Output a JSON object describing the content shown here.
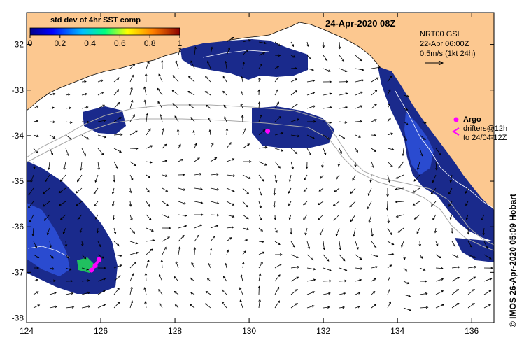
{
  "map": {
    "date_title": "24-Apr-2020 08Z",
    "credit": "© IMOS 26-Apr-2020 05:09 Hobart",
    "x_ticks": [
      "124",
      "126",
      "128",
      "130",
      "132",
      "134",
      "136"
    ],
    "y_ticks": [
      "-32",
      "-33",
      "-34",
      "-35",
      "-36",
      "-37",
      "-38"
    ],
    "x_range": [
      124,
      136.6
    ],
    "y_range": [
      -38.1,
      -31.3
    ]
  },
  "colorbar": {
    "title": "std dev of 4hr SST comp",
    "ticks": [
      "0",
      "0.2",
      "0.4",
      "0.6",
      "0.8",
      "1"
    ],
    "range": [
      0,
      1
    ],
    "colors": [
      "#00008b",
      "#0000ff",
      "#00bfff",
      "#00ff7f",
      "#ffff00",
      "#ff7f00",
      "#8b0000"
    ]
  },
  "current_legend": {
    "line1": "NRT00 GSL",
    "line2": "22-Apr 06:00Z",
    "line3": "0.5m/s (1kt 24h)"
  },
  "drifter_legend": {
    "argo_label": "Argo",
    "drifters_line1": "drifters@12h",
    "drifters_line2": "to 24/04-12Z"
  },
  "colors": {
    "land": "#fcc890",
    "sst_dark": "#1a2a8c",
    "sst_mid": "#2a4bd0",
    "drifter": "#ff00ff",
    "isobath": "#a8a8a8"
  },
  "argo_floats": [
    {
      "lon": 130.5,
      "lat": -33.9
    }
  ],
  "drifter_track": [
    {
      "lon": 125.75,
      "lat": -36.95
    },
    {
      "lon": 125.85,
      "lat": -36.85
    },
    {
      "lon": 125.95,
      "lat": -36.72
    }
  ]
}
